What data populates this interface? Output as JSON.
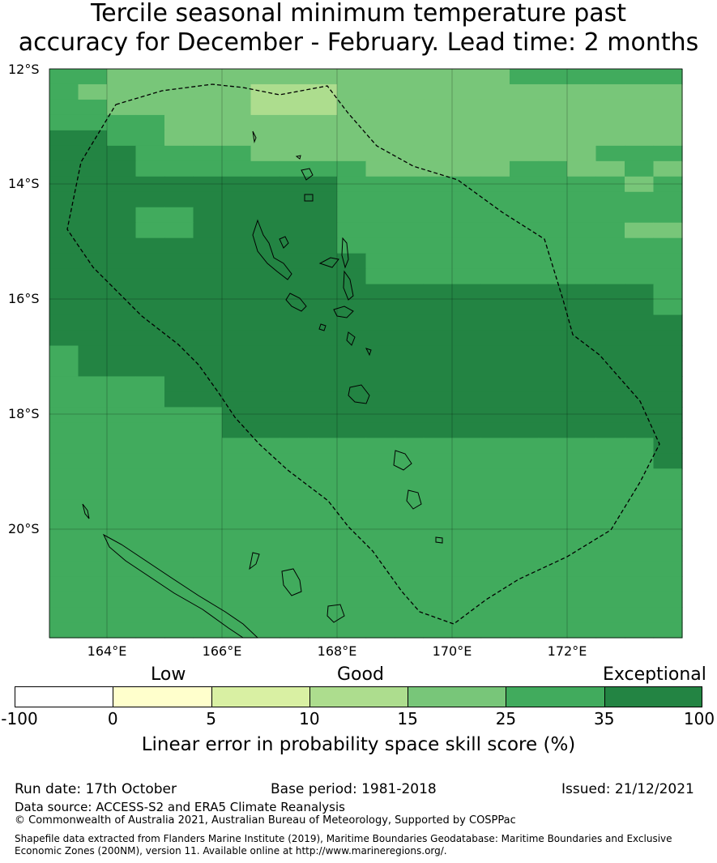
{
  "title": {
    "line1": "Tercile seasonal minimum temperature past",
    "line2": "accuracy for December - February. Lead time: 2 months"
  },
  "map": {
    "lat_labels": [
      "12°S",
      "14°S",
      "16°S",
      "18°S",
      "20°S"
    ],
    "lon_labels": [
      "164°E",
      "166°E",
      "168°E",
      "170°E",
      "172°E"
    ],
    "lon_range": [
      163.0,
      174.0
    ],
    "lat_range": [
      -12.0,
      -21.9
    ],
    "grid_step_deg": 0.833,
    "skill_grid_rows": [
      "2233333333333333222222",
      "2333333444333333333333",
      "2233333444333333333333",
      "2222333333333333333333",
      "5522333333333333333333",
      "5552222333333333333222",
      "5552222222233333223323",
      "5555555555222222222232",
      "5555555555222222222222",
      "5552255555222222222222",
      "5552255555222222222233",
      "5555555555222222222222",
      "5555555555522222222222",
      "5555555555522222222222",
      "5555555555555555555552",
      "5555555555555555555552",
      "5555555555555555555555",
      "5555555555555555555555",
      "2555555555555555555555",
      "2555555555555555555555",
      "2222555555555555555555",
      "2222555555555555555555",
      "2222225555555555555555",
      "2222225555555555555555",
      "2222222222222222222225",
      "2222222222222222222225",
      "2222222222222222222222",
      "2222222222222222222222",
      "2222222222222222222222",
      "2222222222222222222222",
      "2222222222222222222222",
      "2222222222222222222222",
      "2222222222222222222222",
      "2222222222222222222222",
      "2222222222222222222222",
      "2222222222222222222222",
      "2222222222222222222222"
    ]
  },
  "colorbar": {
    "category_labels": [
      "Low",
      "Good",
      "Exceptional"
    ],
    "tick_labels": [
      "-100",
      "0",
      "5",
      "10",
      "15",
      "25",
      "35",
      "100"
    ],
    "colors": [
      "#ffffff",
      "#ffffcc",
      "#d9f0a3",
      "#addd8e",
      "#78c679",
      "#41ab5d",
      "#238443"
    ],
    "title": "Linear error in probability space skill score (%)"
  },
  "footer": {
    "run_date": "Run date: 17th October",
    "base_period": "Base period: 1981-2018",
    "issued": "Issued: 21/12/2021",
    "data_source": "Data source: ACCESS-S2 and ERA5 Climate Reanalysis",
    "copyright": "© Commonwealth of Australia 2021, Australian Bureau of Meteorology, Supported by COSPPac",
    "shapefile_line1": "Shapefile data extracted from Flanders Marine Institute (2019), Maritime Boundaries Geodatabase: Maritime Boundaries and Exclusive",
    "shapefile_line2": "Economic Zones (200NM), version 11. Available online at http://www.marineregions.org/."
  }
}
